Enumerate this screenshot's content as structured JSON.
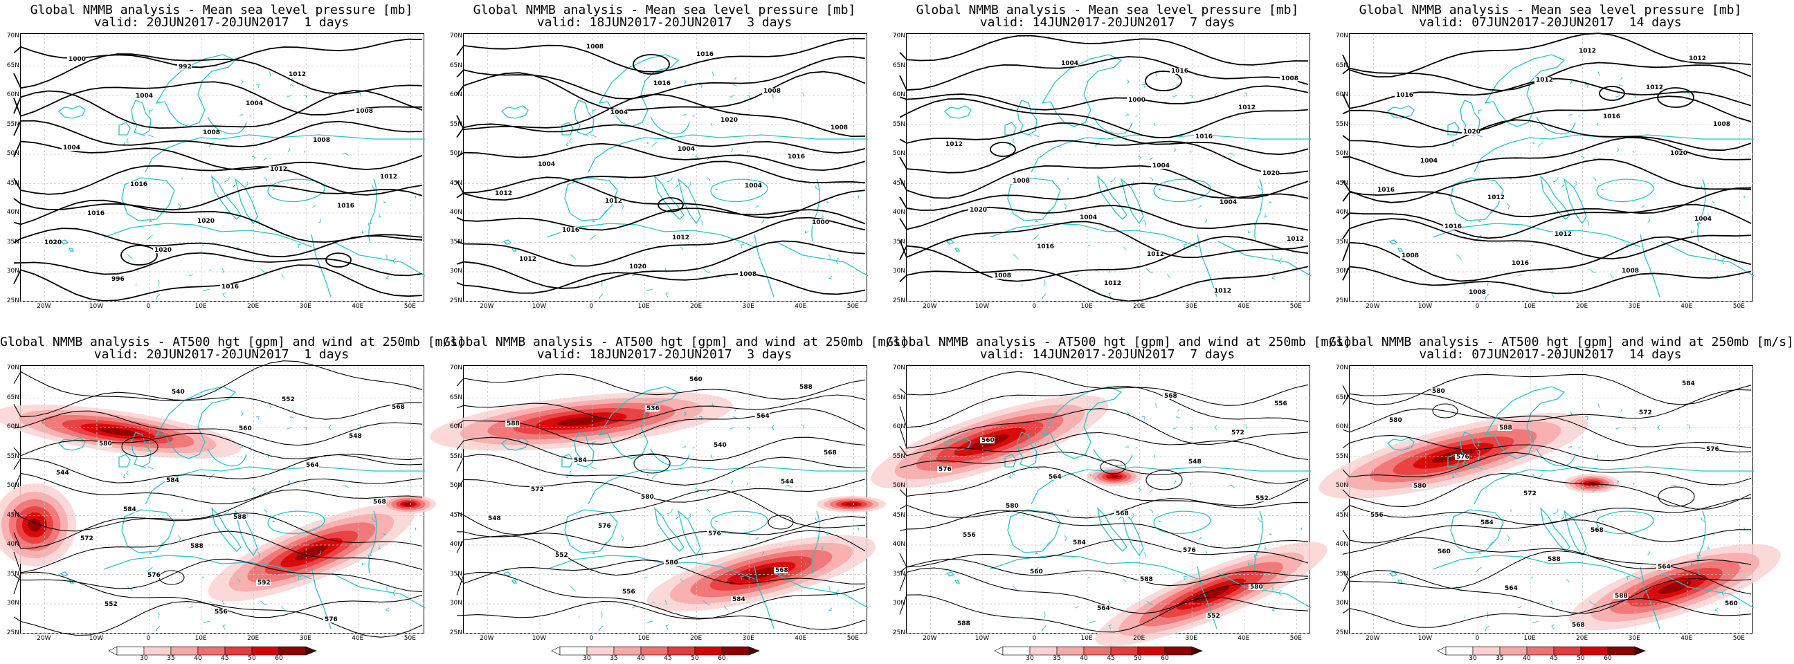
{
  "panels": [
    {
      "title_line1": "Global NMMB analysis - Mean sea level pressure [mb]",
      "title_line2": "valid: 20JUN2017-20JUN2017  1 days",
      "type": "mslp",
      "contour_labels": [
        "1000",
        "1004",
        "1008",
        "1012",
        "1016",
        "1020",
        "996",
        "992",
        "1004",
        "1008",
        "1012",
        "1016",
        "1020",
        "1016",
        "1012",
        "1008",
        "1004",
        "1016",
        "1020"
      ]
    },
    {
      "title_line1": "Global NMMB analysis - Mean sea level pressure [mb]",
      "title_line2": "valid: 18JUN2017-20JUN2017  3 days",
      "type": "mslp",
      "contour_labels": [
        "1004",
        "1004",
        "1004",
        "1000",
        "1012",
        "1008",
        "1016",
        "1020",
        "1016",
        "1012",
        "1016",
        "1020",
        "1016",
        "1008",
        "1008",
        "1004",
        "1012",
        "1012",
        "1008"
      ]
    },
    {
      "title_line1": "Global NMMB analysis - Mean sea level pressure [mb]",
      "title_line2": "valid: 14JUN2017-20JUN2017  7 days",
      "type": "mslp",
      "contour_labels": [
        "1004",
        "1004",
        "1012",
        "1008",
        "1004",
        "1000",
        "1016",
        "1020",
        "1020",
        "1016",
        "1012",
        "1016",
        "1012",
        "1012",
        "1008",
        "1004",
        "1012",
        "1012",
        "1008"
      ]
    },
    {
      "title_line1": "Global NMMB analysis - Mean sea level pressure [mb]",
      "title_line2": "valid: 07JUN2017-20JUN2017  14 days",
      "type": "mslp",
      "contour_labels": [
        "1004",
        "1008",
        "1008",
        "1012",
        "1016",
        "1020",
        "1016",
        "1016",
        "1016",
        "1012",
        "1012",
        "1008",
        "1004",
        "1012",
        "1012",
        "1008",
        "1012",
        "1016",
        "1020"
      ]
    },
    {
      "title_line1": "Global NMMB analysis - AT500 hgt [gpm] and wind at 250mb [m/s]",
      "title_line2": "valid: 20JUN2017-20JUN2017  1 days",
      "type": "z500",
      "contour_labels": [
        "552",
        "540",
        "560",
        "564",
        "568",
        "572",
        "576",
        "556",
        "552",
        "548",
        "544",
        "584",
        "588",
        "592",
        "576",
        "568",
        "580",
        "584",
        "588"
      ]
    },
    {
      "title_line1": "Global NMMB analysis - AT500 hgt [gpm] and wind at 250mb [m/s]",
      "title_line2": "valid: 18JUN2017-20JUN2017  3 days",
      "type": "z500",
      "contour_labels": [
        "536",
        "540",
        "544",
        "548",
        "552",
        "556",
        "560",
        "564",
        "568",
        "572",
        "576",
        "580",
        "584",
        "588",
        "588",
        "584",
        "580",
        "576",
        "568"
      ]
    },
    {
      "title_line1": "Global NMMB analysis - AT500 hgt [gpm] and wind at 250mb [m/s]",
      "title_line2": "valid: 14JUN2017-20JUN2017  7 days",
      "type": "z500",
      "contour_labels": [
        "548",
        "552",
        "556",
        "560",
        "564",
        "568",
        "572",
        "576",
        "580",
        "584",
        "588",
        "552",
        "556",
        "560",
        "564",
        "568",
        "576",
        "580",
        "588"
      ]
    },
    {
      "title_line1": "Global NMMB analysis - AT500 hgt [gpm] and wind at 250mb [m/s]",
      "title_line2": "valid: 07JUN2017-20JUN2017  14 days",
      "type": "z500",
      "contour_labels": [
        "556",
        "560",
        "564",
        "568",
        "572",
        "576",
        "580",
        "584",
        "588",
        "588",
        "584",
        "580",
        "576",
        "572",
        "568",
        "564",
        "560",
        "580",
        "588"
      ]
    }
  ],
  "lat_labels": [
    "70N",
    "65N",
    "60N",
    "55N",
    "50N",
    "45N",
    "40N",
    "35N",
    "30N",
    "25N"
  ],
  "lon_labels": [
    "20W",
    "10W",
    "0",
    "10E",
    "20E",
    "30E",
    "40E",
    "50E"
  ],
  "colorbar_labels": [
    "30",
    "35",
    "40",
    "45",
    "50",
    "60"
  ],
  "colors": {
    "coast": "#25c4cc",
    "contour": "#000000",
    "jet": [
      "#fbd2d2",
      "#f7a8a8",
      "#f07070",
      "#e83a3a",
      "#d80000",
      "#8b0000"
    ]
  }
}
